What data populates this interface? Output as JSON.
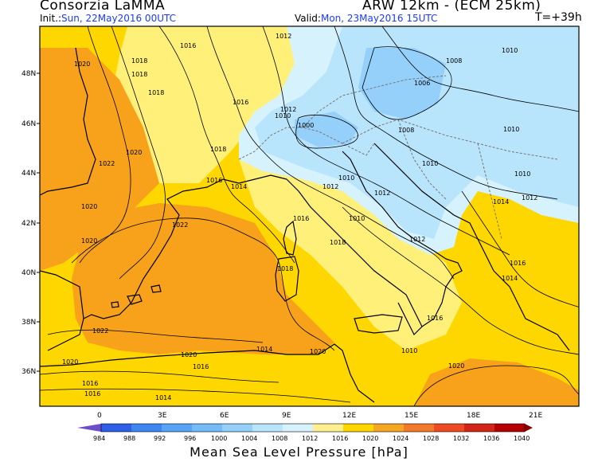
{
  "header": {
    "producer": "Consorzia LaMMA",
    "model": "ARW 12km - (ECM 25km)",
    "init_label": "Init.:",
    "init_value": "Sun, 22May2016 00UTC",
    "valid_label": "Valid:",
    "valid_value": "Mon, 23May2016 15UTC",
    "forecast_step": "T=+39h"
  },
  "map": {
    "lat_ticks": [
      "48N",
      "46N",
      "44N",
      "42N",
      "40N",
      "38N",
      "36N"
    ],
    "lon_ticks": [
      "0",
      "3E",
      "6E",
      "9E",
      "12E",
      "15E",
      "18E",
      "21E"
    ],
    "isobar_labels": [
      "1012",
      "1016",
      "1018",
      "1018",
      "1016",
      "1020",
      "1018",
      "1018",
      "1022",
      "1020",
      "1020",
      "1020",
      "1022",
      "1016",
      "1014",
      "1012",
      "1010",
      "1008",
      "1006",
      "1008",
      "1010",
      "1010",
      "1010",
      "1010",
      "1012",
      "1012",
      "1014",
      "1016",
      "1016",
      "1016",
      "1012",
      "1018",
      "1022",
      "1020",
      "1020",
      "1020",
      "1020",
      "1016",
      "1016",
      "1018",
      "1018",
      "1022",
      "1020",
      "1020",
      "1016",
      "1016",
      "1014",
      "1010",
      "1008",
      "1006",
      "1000",
      "1012",
      "1010",
      "1012",
      "1010",
      "1014",
      "1012",
      "1014",
      "1016",
      "1018",
      "1020",
      "1020"
    ],
    "colors": {
      "sea_ocean_orange": "#f29a00",
      "high_orange": "#f7a21a",
      "yellow_light": "#fff07a",
      "yellow": "#ffd700",
      "light_cyan": "#b9ecfb",
      "cyan": "#9fdcf6",
      "blue_low": "#8ec4f2",
      "land_line": "#000000"
    }
  },
  "colorbar": {
    "title": "Mean Sea Level Pressure [hPa]",
    "levels": [
      "984",
      "988",
      "992",
      "996",
      "1000",
      "1004",
      "1008",
      "1012",
      "1016",
      "1020",
      "1024",
      "1028",
      "1032",
      "1036",
      "1040"
    ],
    "colors": [
      "#6a4fc9",
      "#2f5fe6",
      "#3d86f1",
      "#57a3f5",
      "#75bbf8",
      "#95d0fa",
      "#b8e4fc",
      "#d5f2fd",
      "#ffef8f",
      "#ffd700",
      "#f5a623",
      "#f37a2a",
      "#ee4b24",
      "#d22418",
      "#b30000",
      "#8a0000"
    ]
  }
}
